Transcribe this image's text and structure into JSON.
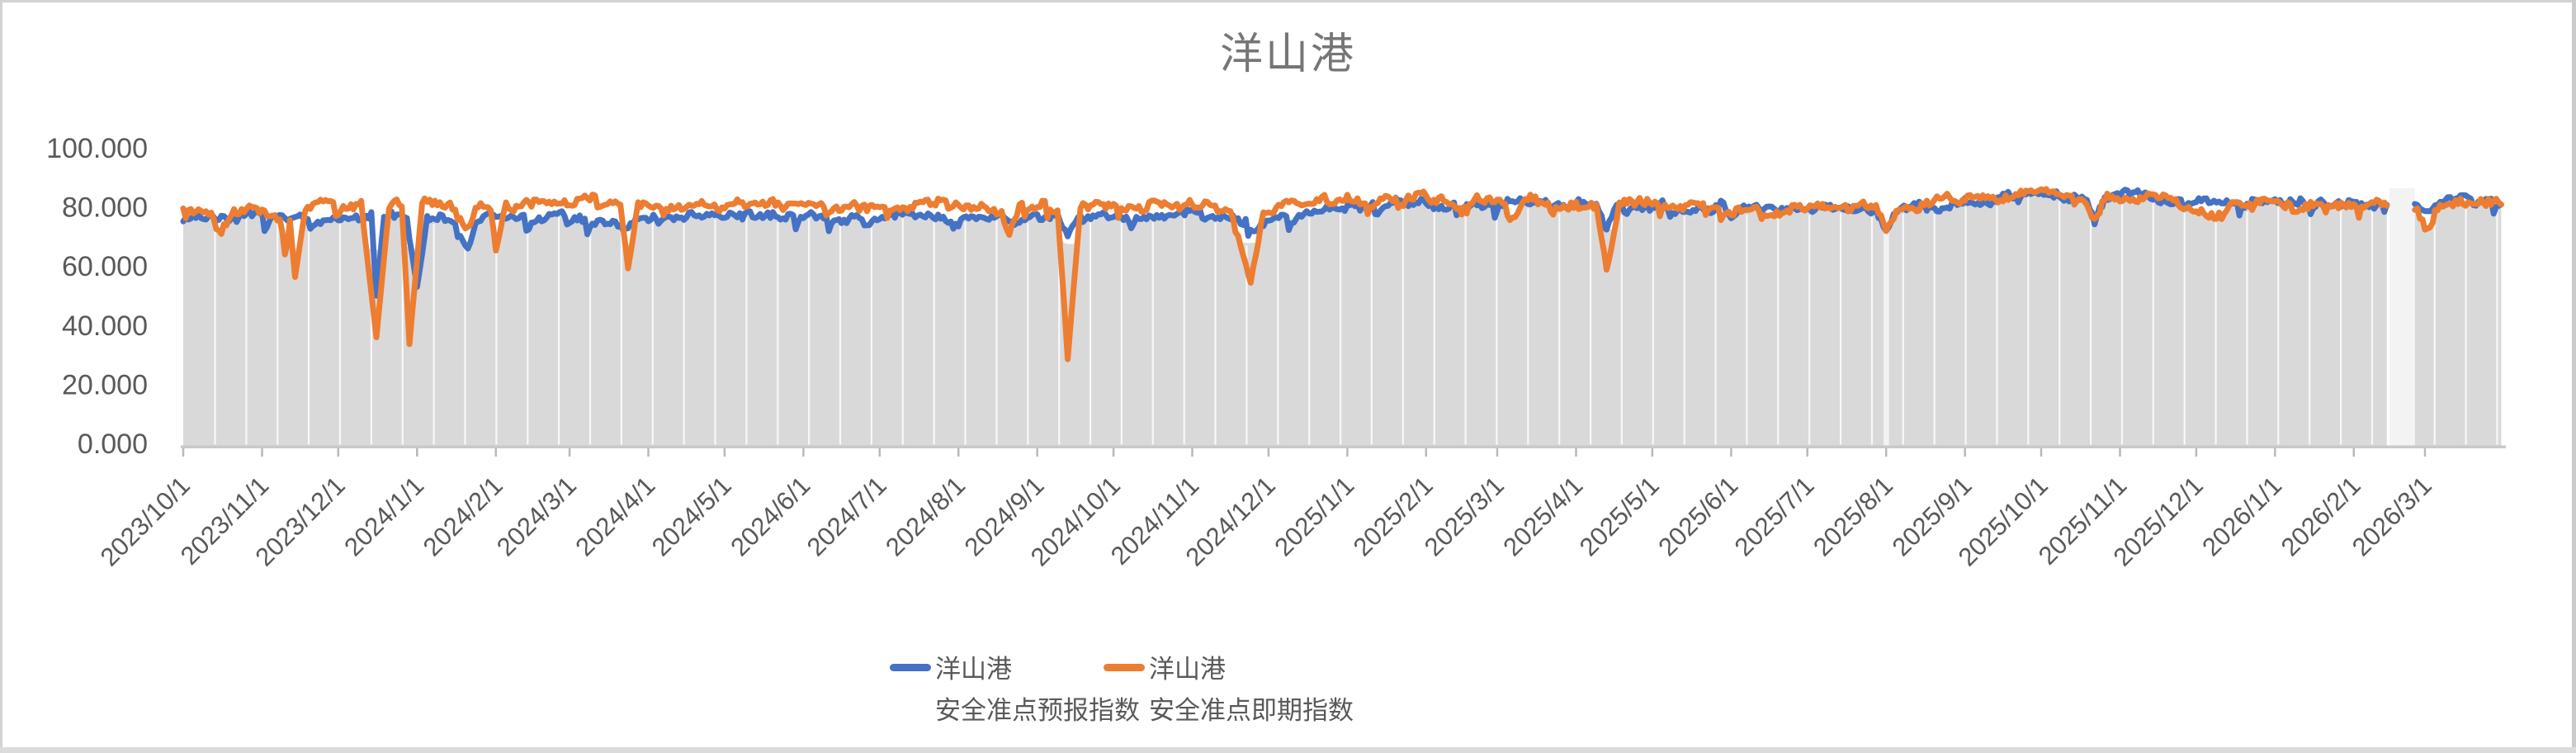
{
  "window": {
    "edge_color_top": "#d3d3d3",
    "edge_color_bottom": "#dbdbdb",
    "edge_color_right": "#cbcbcb"
  },
  "chart_data": {
    "type": "line",
    "title": "洋山港",
    "title_color": "#767676",
    "grid": "off",
    "legend_position": "bottom-center",
    "plot": {
      "background_band_color": "#d9d9d9",
      "band_separator_color": "#ffffff",
      "data_gap_band_color": "#f3f3f3",
      "axis_line_color": "#c9c9c9",
      "tick_mark_color": "#b9b9b9",
      "tick_label_color": "#595959"
    },
    "y_axis": {
      "min": 0,
      "max": 100,
      "tick_step": 20,
      "tick_labels": [
        "100.000",
        "80.000",
        "60.000",
        "40.000",
        "20.000",
        "0.000"
      ],
      "tick_values": [
        100,
        80,
        60,
        40,
        20,
        0
      ]
    },
    "x_axis": {
      "tick_labels": [
        "2023/10/1",
        "2023/11/1",
        "2023/12/1",
        "2024/1/1",
        "2024/2/1",
        "2024/3/1",
        "2024/4/1",
        "2024/5/1",
        "2024/6/1",
        "2024/7/1",
        "2024/8/1",
        "2024/9/1",
        "2024/10/1",
        "2024/11/1",
        "2024/12/1",
        "2025/1/1",
        "2025/2/1",
        "2025/3/1",
        "2025/4/1",
        "2025/5/1",
        "2025/6/1",
        "2025/7/1",
        "2025/8/1",
        "2025/9/1",
        "2025/10/1",
        "2025/11/1",
        "2025/12/1",
        "2026/1/1",
        "2026/2/1",
        "2026/3/1"
      ],
      "tick_days": [
        0,
        31,
        61,
        92,
        123,
        152,
        183,
        213,
        244,
        274,
        305,
        336,
        366,
        397,
        427,
        458,
        489,
        517,
        548,
        578,
        609,
        639,
        670,
        701,
        731,
        762,
        792,
        823,
        854,
        882
      ],
      "rotation_deg": 45
    },
    "total_days": 912,
    "data_gap": {
      "start_day": 868,
      "end_day": 878,
      "note": "no data band mid-Feb 2026"
    },
    "wide_separator_day": 670,
    "series": [
      {
        "name_line1": "洋山港",
        "name_line2": "安全准点预报指数",
        "color": "#4472C4",
        "anchors": [
          [
            0,
            77
          ],
          [
            15,
            76.5
          ],
          [
            30,
            76
          ],
          [
            45,
            75.5
          ],
          [
            60,
            75
          ],
          [
            70,
            74
          ],
          [
            74,
            76
          ],
          [
            76,
            50
          ],
          [
            79,
            75.5
          ],
          [
            88,
            76
          ],
          [
            92,
            53
          ],
          [
            96,
            75.5
          ],
          [
            108,
            74.5
          ],
          [
            112,
            66
          ],
          [
            116,
            76
          ],
          [
            130,
            76.5
          ],
          [
            150,
            77
          ],
          [
            175,
            76
          ],
          [
            200,
            77
          ],
          [
            230,
            77
          ],
          [
            255,
            77.5
          ],
          [
            280,
            77
          ],
          [
            305,
            76.5
          ],
          [
            320,
            76
          ],
          [
            344,
            77
          ],
          [
            348,
            71
          ],
          [
            352,
            77
          ],
          [
            365,
            77.5
          ],
          [
            380,
            78
          ],
          [
            400,
            77
          ],
          [
            418,
            76
          ],
          [
            423,
            74.5
          ],
          [
            428,
            77
          ],
          [
            440,
            79
          ],
          [
            458,
            82
          ],
          [
            475,
            83
          ],
          [
            495,
            82.5
          ],
          [
            517,
            82
          ],
          [
            540,
            82
          ],
          [
            556,
            81
          ],
          [
            560,
            77
          ],
          [
            564,
            81.5
          ],
          [
            580,
            82.5
          ],
          [
            606,
            81
          ],
          [
            610,
            75.5
          ],
          [
            614,
            81
          ],
          [
            630,
            81.5
          ],
          [
            650,
            81
          ],
          [
            666,
            80
          ],
          [
            670,
            74
          ],
          [
            674,
            80.5
          ],
          [
            690,
            81.5
          ],
          [
            715,
            83
          ],
          [
            735,
            84
          ],
          [
            748,
            83
          ],
          [
            752,
            76.5
          ],
          [
            756,
            83
          ],
          [
            775,
            83.5
          ],
          [
            792,
            82.5
          ],
          [
            810,
            82.5
          ],
          [
            830,
            83
          ],
          [
            845,
            82
          ],
          [
            860,
            82
          ],
          [
            867,
            82
          ],
          [
            878,
            82
          ],
          [
            883,
            80.5
          ],
          [
            890,
            83
          ],
          [
            900,
            83.5
          ],
          [
            912,
            83
          ]
        ]
      },
      {
        "name_line1": "洋山港",
        "name_line2": "安全准点即期指数",
        "color": "#ED7D31",
        "anchors": [
          [
            0,
            80
          ],
          [
            10,
            79
          ],
          [
            15,
            74
          ],
          [
            19,
            80
          ],
          [
            30,
            80
          ],
          [
            38,
            78.5
          ],
          [
            40,
            66
          ],
          [
            42,
            79
          ],
          [
            44,
            57
          ],
          [
            48,
            80.5
          ],
          [
            60,
            81
          ],
          [
            70,
            81
          ],
          [
            76,
            36
          ],
          [
            81,
            81
          ],
          [
            86,
            81
          ],
          [
            89,
            34
          ],
          [
            94,
            81
          ],
          [
            105,
            81.5
          ],
          [
            112,
            73
          ],
          [
            117,
            82
          ],
          [
            121,
            80
          ],
          [
            123,
            66
          ],
          [
            127,
            82
          ],
          [
            140,
            82
          ],
          [
            160,
            82
          ],
          [
            172,
            81
          ],
          [
            175,
            59.5
          ],
          [
            179,
            81.5
          ],
          [
            195,
            81
          ],
          [
            215,
            81.5
          ],
          [
            240,
            81
          ],
          [
            265,
            80.5
          ],
          [
            290,
            80
          ],
          [
            310,
            80.5
          ],
          [
            322,
            79
          ],
          [
            325,
            72
          ],
          [
            329,
            81
          ],
          [
            344,
            81
          ],
          [
            348,
            29
          ],
          [
            353,
            81
          ],
          [
            370,
            81.5
          ],
          [
            390,
            80.5
          ],
          [
            412,
            80
          ],
          [
            420,
            55
          ],
          [
            425,
            81
          ],
          [
            445,
            82
          ],
          [
            458,
            83
          ],
          [
            468,
            80
          ],
          [
            475,
            83.5
          ],
          [
            490,
            84
          ],
          [
            503,
            80
          ],
          [
            508,
            84
          ],
          [
            517,
            83
          ],
          [
            524,
            76
          ],
          [
            528,
            83.5
          ],
          [
            548,
            82
          ],
          [
            556,
            82
          ],
          [
            560,
            59
          ],
          [
            565,
            82
          ],
          [
            580,
            82.5
          ],
          [
            600,
            80
          ],
          [
            620,
            79.5
          ],
          [
            640,
            81
          ],
          [
            655,
            80
          ],
          [
            666,
            79
          ],
          [
            670,
            73
          ],
          [
            675,
            80.5
          ],
          [
            690,
            82
          ],
          [
            710,
            83
          ],
          [
            730,
            84
          ],
          [
            748,
            84
          ],
          [
            752,
            75.5
          ],
          [
            757,
            84
          ],
          [
            775,
            84
          ],
          [
            788,
            82
          ],
          [
            800,
            78.5
          ],
          [
            806,
            82.5
          ],
          [
            820,
            83
          ],
          [
            835,
            81
          ],
          [
            845,
            80.5
          ],
          [
            855,
            82
          ],
          [
            867,
            82
          ],
          [
            878,
            81
          ],
          [
            883,
            73
          ],
          [
            887,
            82
          ],
          [
            900,
            82
          ],
          [
            912,
            83.5
          ]
        ]
      }
    ],
    "band_floor_anchors": [
      [
        0,
        72
      ],
      [
        60,
        71.5
      ],
      [
        120,
        72.5
      ],
      [
        200,
        73.5
      ],
      [
        300,
        73.5
      ],
      [
        420,
        74
      ],
      [
        450,
        78
      ],
      [
        520,
        79
      ],
      [
        600,
        78.5
      ],
      [
        670,
        76.5
      ],
      [
        700,
        79
      ],
      [
        760,
        80
      ],
      [
        820,
        80
      ],
      [
        912,
        80
      ]
    ]
  },
  "legend": {
    "entries_note": "legend labels bound from chart_data.series names"
  }
}
